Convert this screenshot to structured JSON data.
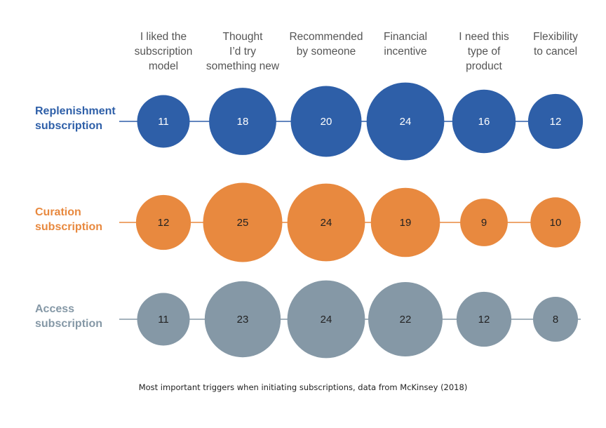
{
  "caption": "Most important triggers when initiating subscriptions, data from McKinsey (2018)",
  "chart_data": {
    "type": "bubble-matrix",
    "categories": [
      [
        "I liked the",
        "subscription",
        "model"
      ],
      [
        "Thought",
        "I’d try",
        "something new"
      ],
      [
        "Recommended",
        "by someone"
      ],
      [
        "Financial",
        "incentive"
      ],
      [
        "I need this",
        "type of",
        "product"
      ],
      [
        "Flexibility",
        "to cancel"
      ]
    ],
    "series": [
      {
        "name": [
          "Replenishment",
          "subscription"
        ],
        "values": [
          11,
          18,
          20,
          24,
          16,
          12
        ],
        "color": "#2e5fa8",
        "text_color": "#ffffff",
        "label_color": "#2e5fa8"
      },
      {
        "name": [
          "Curation",
          "subscription"
        ],
        "values": [
          12,
          25,
          24,
          19,
          9,
          10
        ],
        "color": "#e8893f",
        "text_color": "#222222",
        "label_color": "#e8893f"
      },
      {
        "name": [
          "Access",
          "subscription"
        ],
        "values": [
          11,
          23,
          24,
          22,
          12,
          8
        ],
        "color": "#8598a6",
        "text_color": "#222222",
        "label_color": "#8598a6"
      }
    ]
  }
}
